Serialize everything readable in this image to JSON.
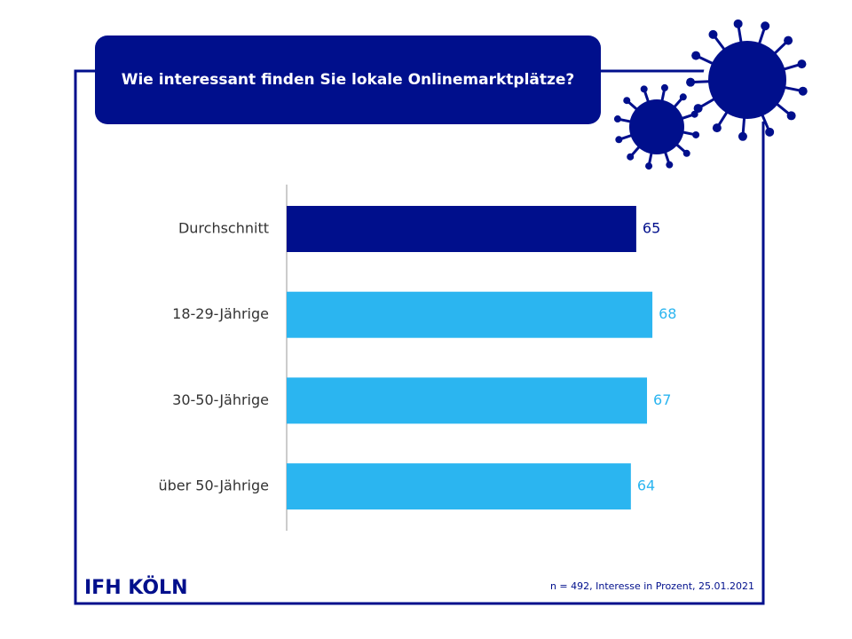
{
  "chart_data": {
    "type": "bar",
    "orientation": "horizontal",
    "title": "Wie interessant finden Sie lokale Onlinemarktplätze?",
    "categories": [
      "Durchschnitt",
      "18-29-Jährige",
      "30-50-Jährige",
      "über 50-Jährige"
    ],
    "values": [
      65,
      68,
      67,
      64
    ],
    "colors": [
      "#000f8c",
      "#2bb5f0",
      "#2bb5f0",
      "#2bb5f0"
    ],
    "logo": "IFH KÖLN",
    "footnote": "n = 492,  Interesse in Prozent, 25.01.2021"
  }
}
